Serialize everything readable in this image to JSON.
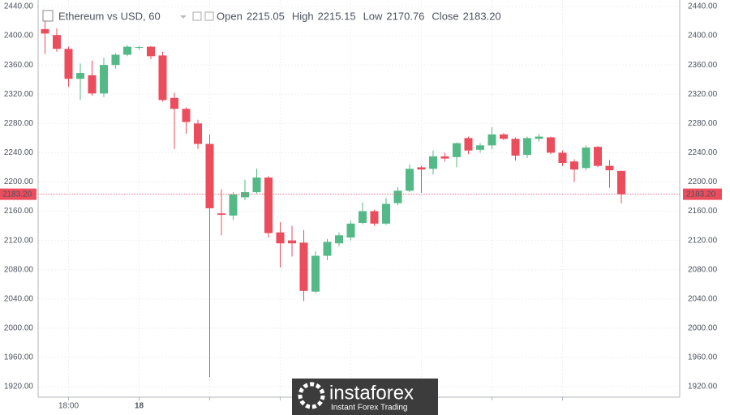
{
  "chart_data": {
    "type": "candlestick",
    "header": {
      "title": "Ethereum vs USD, 60",
      "fields": [
        {
          "name": "Open",
          "value": "2215.05"
        },
        {
          "name": "High",
          "value": "2215.15"
        },
        {
          "name": "Low",
          "value": "2170.76"
        },
        {
          "name": "Close",
          "value": "2183.20"
        }
      ]
    },
    "categories": [
      null,
      null,
      "18:00",
      null,
      null,
      null,
      null,
      null,
      "18",
      null,
      null,
      null,
      null,
      null,
      null,
      null,
      null,
      null,
      null,
      null,
      null,
      null,
      null,
      null,
      null,
      null,
      null,
      null,
      null,
      null,
      null,
      null,
      null,
      null,
      null,
      null,
      null,
      null,
      null,
      null,
      null,
      null,
      null,
      null,
      null,
      null,
      null,
      null,
      null,
      null
    ],
    "open": [
      2409,
      2401,
      2382,
      2341,
      2346,
      2321,
      2360,
      2374,
      2384,
      2385,
      2373,
      2315,
      2300,
      2280,
      2252,
      2157,
      2154,
      2179,
      2186,
      2206,
      2131,
      2120,
      2117,
      2050,
      2099,
      2116,
      2124,
      2144,
      2160,
      2143,
      2171,
      2188,
      2220,
      2218,
      2235,
      2234,
      2260,
      2244,
      2250,
      2265,
      2259,
      2237,
      2259,
      2261,
      2240,
      2228,
      2219,
      2248,
      2222,
      2215.05
    ],
    "high": [
      2420,
      2410,
      2385,
      2362,
      2366,
      2370,
      2376,
      2387,
      2386,
      2386,
      2378,
      2322,
      2302,
      2285,
      2265,
      2190,
      2186,
      2203,
      2218,
      2208,
      2145,
      2140,
      2134,
      2105,
      2122,
      2131,
      2147,
      2172,
      2162,
      2178,
      2193,
      2224,
      2222,
      2243,
      2240,
      2254,
      2262,
      2253,
      2275,
      2267,
      2261,
      2262,
      2266,
      2262,
      2243,
      2231,
      2250,
      2249,
      2230,
      2215.15
    ],
    "low": [
      2375,
      2378,
      2330,
      2312,
      2318,
      2316,
      2355,
      2372,
      2381,
      2368,
      2310,
      2245,
      2266,
      2245,
      1933,
      2127,
      2148,
      2175,
      2184,
      2124,
      2083,
      2098,
      2037,
      2048,
      2093,
      2112,
      2120,
      2142,
      2140,
      2141,
      2168,
      2186,
      2185,
      2210,
      2228,
      2220,
      2238,
      2240,
      2245,
      2257,
      2229,
      2233,
      2255,
      2238,
      2222,
      2200,
      2216,
      2220,
      2192,
      2170.76
    ],
    "close": [
      2403,
      2382,
      2341,
      2349,
      2321,
      2360,
      2374,
      2385,
      2384.5,
      2372,
      2312,
      2300,
      2282,
      2252,
      2164,
      2155,
      2183,
      2186,
      2206,
      2130,
      2116,
      2116,
      2051,
      2099,
      2118,
      2127,
      2143,
      2160,
      2143,
      2170,
      2188,
      2218,
      2217,
      2235,
      2232,
      2253,
      2243,
      2250,
      2265,
      2259,
      2236,
      2260,
      2262,
      2240,
      2226,
      2217,
      2247,
      2222,
      2216,
      2183.2
    ],
    "up_color": "#53b987",
    "down_color": "#eb4d5c",
    "last_price": {
      "value": 2183.2,
      "label": "2183.20"
    },
    "ylim": [
      1920,
      2440
    ],
    "yticks": [
      {
        "value": 1920,
        "label": "1920.00"
      },
      {
        "value": 1960,
        "label": "1960.00"
      },
      {
        "value": 2000,
        "label": "2000.00"
      },
      {
        "value": 2040,
        "label": "2040.00"
      },
      {
        "value": 2080,
        "label": "2080.00"
      },
      {
        "value": 2120,
        "label": "2120.00"
      },
      {
        "value": 2160,
        "label": "2160.00"
      },
      {
        "value": 2200,
        "label": "2200.00"
      },
      {
        "value": 2240,
        "label": "2240.00"
      },
      {
        "value": 2280,
        "label": "2280.00"
      },
      {
        "value": 2320,
        "label": "2320.00"
      },
      {
        "value": 2360,
        "label": "2360.00"
      },
      {
        "value": 2400,
        "label": "2400.00"
      },
      {
        "value": 2440,
        "label": "2440.00"
      }
    ],
    "grid": true,
    "watermark": {
      "brand": "instaforex",
      "tagline": "Instant Forex Trading"
    }
  }
}
